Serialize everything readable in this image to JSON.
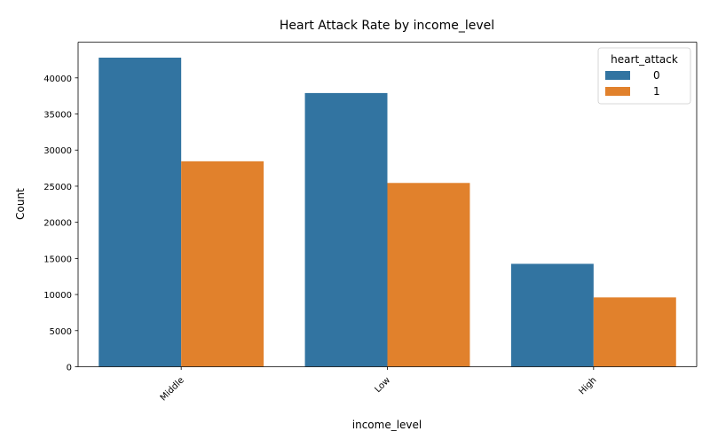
{
  "chart_data": {
    "type": "bar",
    "title": "Heart Attack Rate by income_level",
    "xlabel": "income_level",
    "ylabel": "Count",
    "categories": [
      "Middle",
      "Low",
      "High"
    ],
    "series": [
      {
        "name": "0",
        "values": [
          42800,
          37900,
          14250
        ],
        "color": "#3274a1"
      },
      {
        "name": "1",
        "values": [
          28450,
          25450,
          9600
        ],
        "color": "#e1812c"
      }
    ],
    "ylim": [
      0,
      44950
    ],
    "yticks": [
      0,
      5000,
      10000,
      15000,
      20000,
      25000,
      30000,
      35000,
      40000
    ],
    "legend": {
      "title": "heart_attack",
      "position": "top-right"
    },
    "grid": false
  }
}
